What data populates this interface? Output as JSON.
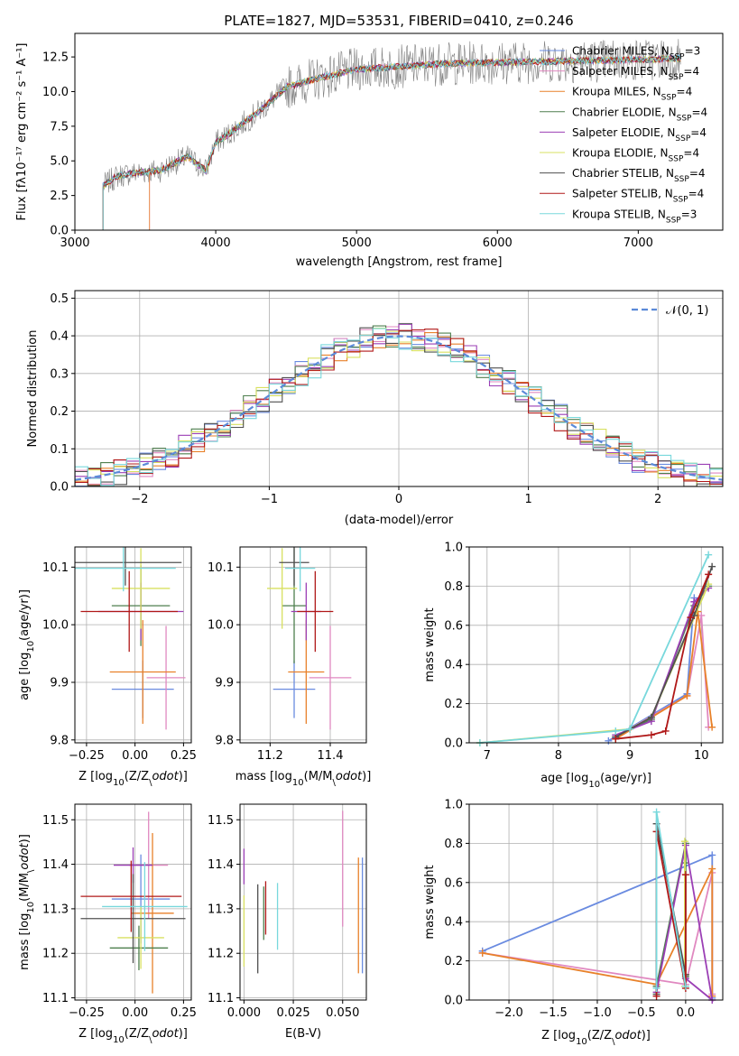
{
  "figure": {
    "title": "PLATE=1827, MJD=53531, FIBERID=0410, z=0.246"
  },
  "series": [
    {
      "name": "Chabrier MILES, N$_{SSP}$=3",
      "label_main": "Chabrier MILES, N",
      "nssp": "3",
      "color": "#6a8be0"
    },
    {
      "name": "Salpeter MILES, N$_{SSP}$=4",
      "label_main": "Salpeter MILES, N",
      "nssp": "4",
      "color": "#e088c0"
    },
    {
      "name": "Kroupa MILES, N$_{SSP}$=4",
      "label_main": "Kroupa MILES, N",
      "nssp": "4",
      "color": "#e8812a"
    },
    {
      "name": "Chabrier ELODIE, N$_{SSP}$=4",
      "label_main": "Chabrier ELODIE, N",
      "nssp": "4",
      "color": "#4e7f4e"
    },
    {
      "name": "Salpeter ELODIE, N$_{SSP}$=4",
      "label_main": "Salpeter ELODIE, N",
      "nssp": "4",
      "color": "#9b3fb5"
    },
    {
      "name": "Kroupa ELODIE, N$_{SSP}$=4",
      "label_main": "Kroupa ELODIE, N",
      "nssp": "4",
      "color": "#d8e060"
    },
    {
      "name": "Chabrier STELIB, N$_{SSP}$=4",
      "label_main": "Chabrier STELIB, N",
      "nssp": "4",
      "color": "#505050"
    },
    {
      "name": "Salpeter STELIB, N$_{SSP}$=4",
      "label_main": "Salpeter STELIB, N",
      "nssp": "4",
      "color": "#b01818"
    },
    {
      "name": "Kroupa STELIB, N$_{SSP}$=3",
      "label_main": "Kroupa STELIB, N",
      "nssp": "3",
      "color": "#78d8dc"
    }
  ],
  "chart_data": [
    {
      "id": "spectrum",
      "type": "line",
      "xlabel": "wavelength [Angstrom, rest frame]",
      "ylabel": "Flux [f$_\\lambda$10$^{-17}$ erg cm$^{-2}$ s$^{-1}$ A$^{-1}$]",
      "ylabel_text": "Flux [fλ10⁻¹⁷ erg cm⁻² s⁻¹ A⁻¹]",
      "xlim": [
        3000,
        7600
      ],
      "ylim": [
        0,
        14.2
      ],
      "xticks": [
        3000,
        4000,
        5000,
        6000,
        7000
      ],
      "yticks": [
        0.0,
        2.5,
        5.0,
        7.5,
        10.0,
        12.5
      ],
      "data_color": "#808080",
      "continuum_knots": [
        [
          3200,
          3.2
        ],
        [
          3300,
          3.9
        ],
        [
          3400,
          4.1
        ],
        [
          3600,
          4.3
        ],
        [
          3800,
          5.3
        ],
        [
          3930,
          4.3
        ],
        [
          4000,
          6.3
        ],
        [
          4100,
          7.0
        ],
        [
          4300,
          8.5
        ],
        [
          4500,
          10.3
        ],
        [
          4700,
          10.9
        ],
        [
          5000,
          11.6
        ],
        [
          5300,
          11.8
        ],
        [
          5600,
          12.0
        ],
        [
          6000,
          12.1
        ],
        [
          6500,
          12.2
        ],
        [
          7000,
          12.3
        ],
        [
          7300,
          12.4
        ]
      ],
      "data_range": [
        3200,
        7300
      ],
      "model_start": {
        "Kroupa MILES, N$_{SSP}$=4": 3530,
        "Salpeter MILES, N$_{SSP}$=4": 3530
      }
    },
    {
      "id": "residuals",
      "type": "histogram",
      "xlabel": "(data-model)/error",
      "ylabel": "Normed distribution",
      "xlim": [
        -2.5,
        2.5
      ],
      "ylim": [
        0,
        0.52
      ],
      "xticks": [
        -2,
        -1,
        0,
        1,
        2
      ],
      "yticks": [
        0.0,
        0.1,
        0.2,
        0.3,
        0.4,
        0.5
      ],
      "bin_width": 0.1,
      "reference": {
        "name": "$\\mathcal{N}(0,1)$",
        "label": "𝒩(0, 1)",
        "color": "#5b8ad8"
      }
    },
    {
      "id": "age-vs-Z",
      "type": "scatter",
      "xlabel": "Z [log$_{10}$(Z/Z$_\\odot$)]",
      "ylabel": "age  [log$_{10}$(age/yr)]",
      "xlim": [
        -0.31,
        0.29
      ],
      "ylim": [
        9.795,
        10.135
      ],
      "xticks": [
        -0.25,
        0.0,
        0.25
      ],
      "yticks": [
        9.8,
        9.9,
        10.0,
        10.1
      ],
      "points": [
        {
          "series": 0,
          "x": 0.04,
          "y": 9.888,
          "xerr": 0.16,
          "yerr": 0.05
        },
        {
          "series": 1,
          "x": 0.16,
          "y": 9.908,
          "xerr": 0.1,
          "yerr": 0.09
        },
        {
          "series": 2,
          "x": 0.04,
          "y": 9.918,
          "xerr": 0.17,
          "yerr": 0.09
        },
        {
          "series": 3,
          "x": 0.03,
          "y": 10.033,
          "xerr": 0.15,
          "yerr": 0.07
        },
        {
          "series": 4,
          "x": 0.03,
          "y": 10.023,
          "xerr": 0.22,
          "yerr": 0.05
        },
        {
          "series": 5,
          "x": 0.03,
          "y": 10.063,
          "xerr": 0.15,
          "yerr": 0.07
        },
        {
          "series": 6,
          "x": -0.05,
          "y": 10.108,
          "xerr": 0.29,
          "yerr": 0.04
        },
        {
          "series": 7,
          "x": -0.03,
          "y": 10.023,
          "xerr": 0.25,
          "yerr": 0.07
        },
        {
          "series": 8,
          "x": -0.06,
          "y": 10.098,
          "xerr": 0.27,
          "yerr": 0.04
        }
      ]
    },
    {
      "id": "age-vs-mass",
      "type": "scatter",
      "xlabel": "mass [log$_{10}$(M/M$_\\odot$)]",
      "ylabel": "",
      "xlim": [
        11.1,
        11.52
      ],
      "ylim": [
        9.795,
        10.135
      ],
      "xticks": [
        11.2,
        11.4
      ],
      "yticks": [
        9.8,
        9.9,
        10.0,
        10.1
      ],
      "points": [
        {
          "series": 0,
          "x": 11.28,
          "y": 9.888,
          "xerr": 0.07,
          "yerr": 0.05
        },
        {
          "series": 1,
          "x": 11.4,
          "y": 9.908,
          "xerr": 0.07,
          "yerr": 0.09
        },
        {
          "series": 2,
          "x": 11.32,
          "y": 9.918,
          "xerr": 0.06,
          "yerr": 0.09
        },
        {
          "series": 3,
          "x": 11.28,
          "y": 10.033,
          "xerr": 0.04,
          "yerr": 0.1
        },
        {
          "series": 4,
          "x": 11.32,
          "y": 10.023,
          "xerr": 0.05,
          "yerr": 0.05
        },
        {
          "series": 5,
          "x": 11.24,
          "y": 10.063,
          "xerr": 0.05,
          "yerr": 0.07
        },
        {
          "series": 6,
          "x": 11.28,
          "y": 10.108,
          "xerr": 0.05,
          "yerr": 0.04
        },
        {
          "series": 7,
          "x": 11.35,
          "y": 10.023,
          "xerr": 0.06,
          "yerr": 0.07
        },
        {
          "series": 8,
          "x": 11.3,
          "y": 10.098,
          "xerr": 0.05,
          "yerr": 0.04
        }
      ]
    },
    {
      "id": "mass-weight-vs-age",
      "type": "line",
      "xlabel": "age  [log$_{10}$(age/yr)]",
      "ylabel": "mass weight",
      "xlim": [
        6.75,
        10.3
      ],
      "ylim": [
        0.0,
        1.0
      ],
      "xticks": [
        7,
        8,
        9,
        10
      ],
      "yticks": [
        0.0,
        0.2,
        0.4,
        0.6,
        0.8,
        1.0
      ],
      "lines": [
        {
          "series": 0,
          "x": [
            8.7,
            9.8,
            9.9
          ],
          "y": [
            0.01,
            0.25,
            0.74
          ]
        },
        {
          "series": 1,
          "x": [
            8.8,
            9.8,
            10.0,
            10.1
          ],
          "y": [
            0.03,
            0.24,
            0.65,
            0.08
          ]
        },
        {
          "series": 2,
          "x": [
            8.8,
            9.8,
            9.95,
            10.15
          ],
          "y": [
            0.02,
            0.24,
            0.67,
            0.08
          ]
        },
        {
          "series": 3,
          "x": [
            9.0,
            9.3,
            9.9,
            10.1
          ],
          "y": [
            0.07,
            0.12,
            0.7,
            0.8
          ]
        },
        {
          "series": 4,
          "x": [
            8.8,
            9.3,
            9.9,
            10.1
          ],
          "y": [
            0.04,
            0.11,
            0.72,
            0.79
          ]
        },
        {
          "series": 5,
          "x": [
            6.9,
            9.0,
            9.3,
            10.1
          ],
          "y": [
            0.0,
            0.07,
            0.13,
            0.81
          ]
        },
        {
          "series": 6,
          "x": [
            8.8,
            9.3,
            9.9,
            10.15
          ],
          "y": [
            0.03,
            0.13,
            0.65,
            0.9
          ]
        },
        {
          "series": 7,
          "x": [
            8.8,
            9.3,
            9.5,
            9.85,
            10.1
          ],
          "y": [
            0.02,
            0.04,
            0.06,
            0.64,
            0.86
          ]
        },
        {
          "series": 8,
          "x": [
            6.9,
            8.8,
            9.0,
            10.1
          ],
          "y": [
            0.0,
            0.06,
            0.07,
            0.96
          ]
        }
      ]
    },
    {
      "id": "mass-vs-Z",
      "type": "scatter",
      "xlabel": "Z [log$_{10}$(Z/Z$_\\odot$)]",
      "ylabel": "mass [log$_{10}$(M/M$_\\odot$)]",
      "xlim": [
        -0.31,
        0.29
      ],
      "ylim": [
        11.095,
        11.535
      ],
      "xticks": [
        -0.25,
        0.0,
        0.25
      ],
      "yticks": [
        11.1,
        11.2,
        11.3,
        11.4,
        11.5
      ],
      "points": [
        {
          "series": 0,
          "x": 0.03,
          "y": 11.322,
          "xerr": 0.15,
          "yerr": 0.1
        },
        {
          "series": 1,
          "x": 0.07,
          "y": 11.398,
          "xerr": 0.1,
          "yerr": 0.12
        },
        {
          "series": 2,
          "x": 0.09,
          "y": 11.29,
          "xerr": 0.11,
          "yerr": 0.18
        },
        {
          "series": 3,
          "x": 0.02,
          "y": 11.212,
          "xerr": 0.15,
          "yerr": 0.05
        },
        {
          "series": 4,
          "x": -0.01,
          "y": 11.398,
          "xerr": 0.1,
          "yerr": 0.04
        },
        {
          "series": 5,
          "x": 0.03,
          "y": 11.235,
          "xerr": 0.12,
          "yerr": 0.07
        },
        {
          "series": 6,
          "x": -0.01,
          "y": 11.278,
          "xerr": 0.27,
          "yerr": 0.1
        },
        {
          "series": 7,
          "x": -0.02,
          "y": 11.328,
          "xerr": 0.26,
          "yerr": 0.08
        },
        {
          "series": 8,
          "x": 0.05,
          "y": 11.305,
          "xerr": 0.22,
          "yerr": 0.1
        }
      ]
    },
    {
      "id": "mass-vs-EBV",
      "type": "scatter",
      "xlabel": "E(B-V)",
      "ylabel": "",
      "xlim": [
        -0.002,
        0.062
      ],
      "ylim": [
        11.095,
        11.535
      ],
      "xticks": [
        0.0,
        0.025,
        0.05
      ],
      "xticklabels": [
        "0.000",
        "0.025",
        "0.050"
      ],
      "yticks": [
        11.1,
        11.2,
        11.3,
        11.4,
        11.5
      ],
      "points": [
        {
          "series": 0,
          "x": 0.06,
          "y": 11.285,
          "xerr": 0.0,
          "yerr": 0.13
        },
        {
          "series": 1,
          "x": 0.05,
          "y": 11.39,
          "xerr": 0.0,
          "yerr": 0.13
        },
        {
          "series": 2,
          "x": 0.058,
          "y": 11.285,
          "xerr": 0.0,
          "yerr": 0.13
        },
        {
          "series": 3,
          "x": 0.01,
          "y": 11.29,
          "xerr": 0.0,
          "yerr": 0.06
        },
        {
          "series": 4,
          "x": 0.0,
          "y": 11.395,
          "xerr": 0.0,
          "yerr": 0.04
        },
        {
          "series": 5,
          "x": 0.0,
          "y": 11.25,
          "xerr": 0.0,
          "yerr": 0.08
        },
        {
          "series": 6,
          "x": 0.007,
          "y": 11.255,
          "xerr": 0.0,
          "yerr": 0.1
        },
        {
          "series": 7,
          "x": 0.011,
          "y": 11.302,
          "xerr": 0.0,
          "yerr": 0.06
        },
        {
          "series": 8,
          "x": 0.017,
          "y": 11.283,
          "xerr": 0.0,
          "yerr": 0.075
        }
      ]
    },
    {
      "id": "mass-weight-vs-Z",
      "type": "line",
      "xlabel": "Z [log$_{10}$(Z/Z$_\\odot$)]",
      "ylabel": "mass weight",
      "xlim": [
        -2.45,
        0.42
      ],
      "ylim": [
        0.0,
        1.0
      ],
      "xticks": [
        -2.0,
        -1.5,
        -1.0,
        -0.5,
        0.0
      ],
      "yticks": [
        0.0,
        0.2,
        0.4,
        0.6,
        0.8,
        1.0
      ],
      "lines": [
        {
          "series": 0,
          "x": [
            -2.3,
            0.3,
            0.3
          ],
          "y": [
            0.25,
            0.74,
            0.01
          ]
        },
        {
          "series": 1,
          "x": [
            -2.3,
            0.0,
            0.3,
            0.3
          ],
          "y": [
            0.24,
            0.08,
            0.65,
            0.03
          ]
        },
        {
          "series": 2,
          "x": [
            -2.3,
            -0.33,
            0.3,
            0.3
          ],
          "y": [
            0.24,
            0.08,
            0.67,
            0.02
          ]
        },
        {
          "series": 3,
          "x": [
            -0.33,
            0.0,
            0.0,
            0.0
          ],
          "y": [
            0.07,
            0.8,
            0.12,
            0.7
          ]
        },
        {
          "series": 4,
          "x": [
            -0.33,
            0.0,
            0.3,
            0.0
          ],
          "y": [
            0.04,
            0.79,
            0.0,
            0.11
          ]
        },
        {
          "series": 5,
          "x": [
            -0.01,
            -0.01,
            0.0
          ],
          "y": [
            0.07,
            0.81,
            0.13
          ]
        },
        {
          "series": 6,
          "x": [
            -0.33,
            -0.33,
            0.0
          ],
          "y": [
            0.03,
            0.9,
            0.13
          ]
        },
        {
          "series": 7,
          "x": [
            -0.33,
            -0.33,
            0.0,
            0.0
          ],
          "y": [
            0.02,
            0.86,
            0.06,
            0.64
          ]
        },
        {
          "series": 8,
          "x": [
            -0.33,
            -0.33,
            0.0
          ],
          "y": [
            0.06,
            0.96,
            0.07
          ]
        }
      ]
    }
  ]
}
